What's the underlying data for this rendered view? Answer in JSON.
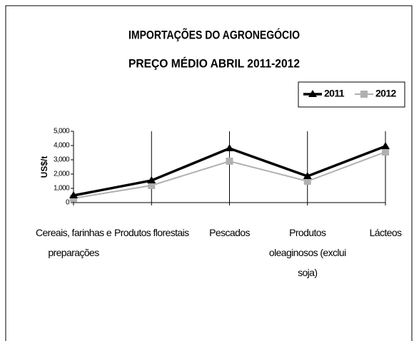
{
  "chart_data": {
    "type": "line",
    "title": [
      "IMPORTAÇÕES DO AGRONEGÓCIO",
      "PREÇO MÉDIO ABRIL 2011-2012"
    ],
    "ylabel": "US$/t",
    "categories": [
      "Cereais, farinhas e preparações",
      "Produtos florestais",
      "Pescados",
      "Produtos oleaginosos (exclui soja)",
      "Lácteos"
    ],
    "series": [
      {
        "name": "2011",
        "color": "#000000",
        "marker": "triangle",
        "values": [
          500,
          1550,
          3800,
          1850,
          3950
        ]
      },
      {
        "name": "2012",
        "color": "#b0b0b0",
        "marker": "square",
        "values": [
          300,
          1200,
          2900,
          1500,
          3550
        ]
      }
    ],
    "ylim": [
      0,
      5000
    ],
    "yticks": [
      0,
      {
        "value": 1000,
        "label": "1,000"
      },
      {
        "value": 2000,
        "label": "2,000"
      },
      {
        "value": 3000,
        "label": "3,000"
      },
      {
        "value": 4000,
        "label": "4,000"
      },
      {
        "value": 5000,
        "label": "5,000"
      }
    ],
    "grid": "x",
    "legend": "top-right"
  }
}
